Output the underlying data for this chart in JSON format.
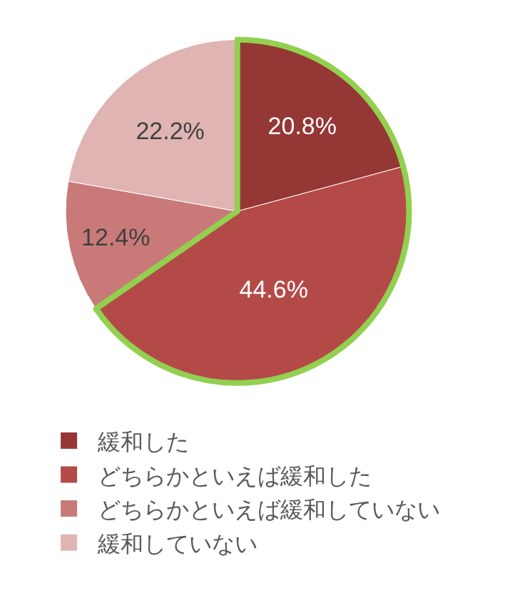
{
  "chart_data": {
    "type": "pie",
    "categories": [
      "緩和した",
      "どちらかといえば緩和した",
      "どちらかといえば緩和していない",
      "緩和していない"
    ],
    "values": [
      20.8,
      44.6,
      12.4,
      22.2
    ],
    "value_labels": [
      "20.8%",
      "44.6%",
      "12.4%",
      "22.2%"
    ],
    "colors": [
      "#953735",
      "#b44a48",
      "#c97a78",
      "#dfb4b3"
    ],
    "legend": "bottom"
  }
}
